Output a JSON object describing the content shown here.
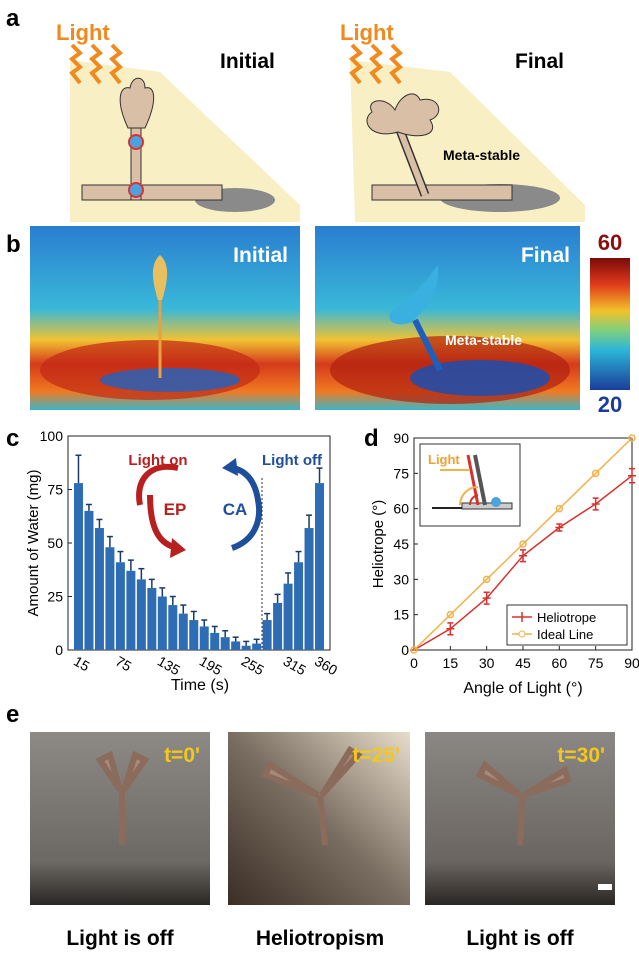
{
  "panel_a": {
    "label": "a",
    "initial": {
      "light": "Light",
      "title": "Initial"
    },
    "final": {
      "light": "Light",
      "title": "Final",
      "note": "Meta-stable"
    }
  },
  "panel_b": {
    "label": "b",
    "initial_title": "Initial",
    "final_title": "Final",
    "note": "Meta-stable",
    "colorbar": {
      "max": 60,
      "min": 20
    }
  },
  "chart_data": [
    {
      "type": "bar",
      "panel_label": "c",
      "xlabel": "Time (s)",
      "ylabel": "Amount of Water (mg)",
      "color": "#2e6db4",
      "x": [
        15,
        30,
        45,
        60,
        75,
        90,
        105,
        120,
        135,
        150,
        165,
        180,
        195,
        210,
        225,
        240,
        255,
        270,
        285,
        300,
        315,
        330,
        345,
        360
      ],
      "values": [
        78,
        65,
        57,
        48,
        41,
        37,
        33,
        29,
        25,
        21,
        17,
        14,
        11,
        8,
        6,
        4,
        2,
        3,
        14,
        22,
        31,
        41,
        57,
        78
      ],
      "errors": [
        13,
        3,
        4,
        5,
        5,
        5,
        5,
        4,
        4,
        4,
        4,
        4,
        3,
        3,
        3,
        2,
        2,
        2,
        3,
        4,
        5,
        5,
        6,
        7
      ],
      "xlim": [
        0,
        375
      ],
      "xticks": [
        15,
        75,
        135,
        195,
        255,
        315,
        360
      ],
      "ylim": [
        0,
        100
      ],
      "yticks": [
        0,
        25,
        50,
        75,
        100
      ],
      "annotations": {
        "on": "Light on",
        "on_mode": "EP",
        "off": "Light off",
        "off_mode": "CA"
      }
    },
    {
      "type": "line",
      "panel_label": "d",
      "xlabel": "Angle of Light (°)",
      "ylabel": "Heliotrope (°)",
      "inset_label": "Light",
      "x": [
        0,
        15,
        30,
        45,
        60,
        75,
        90
      ],
      "series": [
        {
          "name": "Heliotrope",
          "color": "#d9302c",
          "values": [
            0,
            9,
            22,
            40,
            52,
            62,
            74
          ],
          "errors": [
            0,
            2.5,
            2.5,
            2.5,
            1.5,
            2.5,
            3
          ]
        },
        {
          "name": "Ideal Line",
          "color": "#f2b24a",
          "values": [
            0,
            15,
            30,
            45,
            60,
            75,
            90
          ]
        }
      ],
      "xlim": [
        0,
        90
      ],
      "xticks": [
        0,
        15,
        30,
        45,
        60,
        75,
        90
      ],
      "ylim": [
        0,
        90
      ],
      "yticks": [
        0,
        15,
        30,
        45,
        60,
        75,
        90
      ],
      "legend": "lower right"
    }
  ],
  "panel_e": {
    "label": "e",
    "photos": [
      {
        "time": "t=0'",
        "caption": "Light is off"
      },
      {
        "time": "t=25'",
        "caption": "Heliotropism"
      },
      {
        "time": "t=30'",
        "caption": "Light is off"
      }
    ]
  }
}
